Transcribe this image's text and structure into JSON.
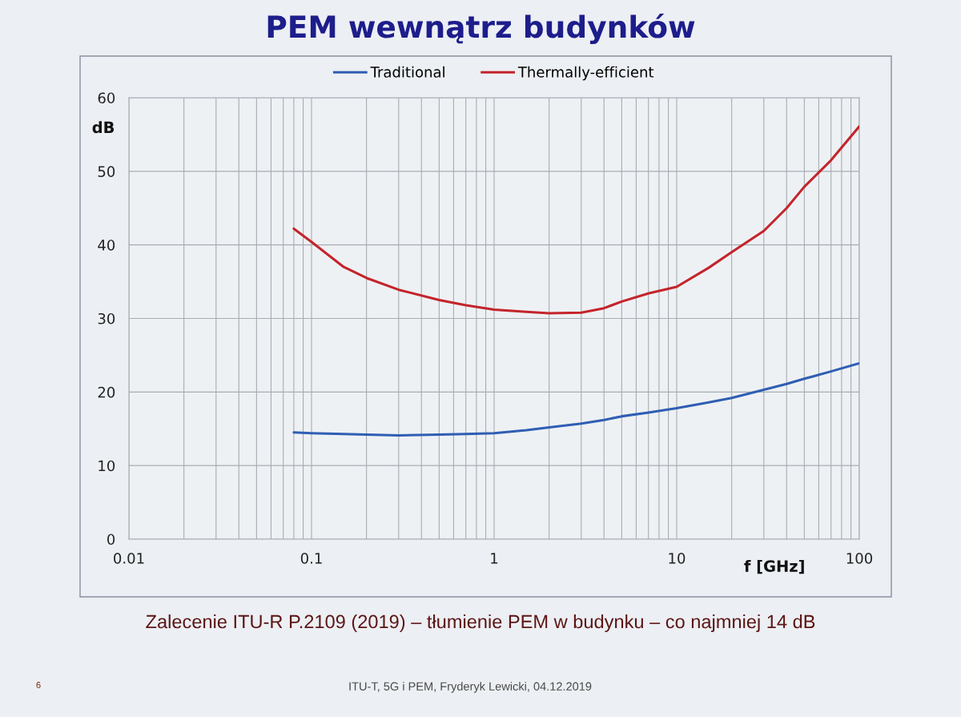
{
  "chart_data": {
    "type": "line",
    "title": "PEM wewnątrz budynków",
    "xlabel": "f [GHz]",
    "ylabel": "dB",
    "x": [
      0.08,
      0.1,
      0.15,
      0.2,
      0.3,
      0.5,
      0.7,
      1,
      1.5,
      2,
      3,
      4,
      5,
      7,
      10,
      15,
      20,
      30,
      40,
      50,
      70,
      100
    ],
    "series": [
      {
        "name": "Traditional",
        "color": "#2f5eb3",
        "values": [
          14.5,
          14.4,
          14.3,
          14.2,
          14.1,
          14.2,
          14.3,
          14.4,
          14.8,
          15.2,
          15.7,
          16.2,
          16.7,
          17.2,
          17.8,
          18.6,
          19.2,
          20.3,
          21.1,
          21.8,
          22.8,
          23.9
        ]
      },
      {
        "name": "Thermally-efficient",
        "color": "#c4242b",
        "values": [
          42.2,
          40.4,
          37.0,
          35.5,
          33.9,
          32.5,
          31.8,
          31.2,
          30.9,
          30.7,
          30.8,
          31.4,
          32.3,
          33.4,
          34.3,
          36.9,
          39.0,
          41.9,
          45.0,
          47.9,
          51.5,
          56.1
        ]
      }
    ],
    "log": "x",
    "xlim": [
      0.01,
      100
    ],
    "xticks": [
      0.01,
      0.1,
      1,
      10,
      100
    ],
    "ylim": [
      0,
      60
    ],
    "yticks": [
      0,
      10,
      20,
      30,
      40,
      50,
      60
    ],
    "grid": true,
    "legend": "top",
    "line_style": "solid",
    "annotations": [
      "Zalecenie ITU-R P.2109 (2019) – tłumienie PEM w budynku – co najmniej 14 dB",
      "ITU-T, 5G i PEM, Fryderyk Lewicki, 04.12.2019",
      "6"
    ]
  }
}
